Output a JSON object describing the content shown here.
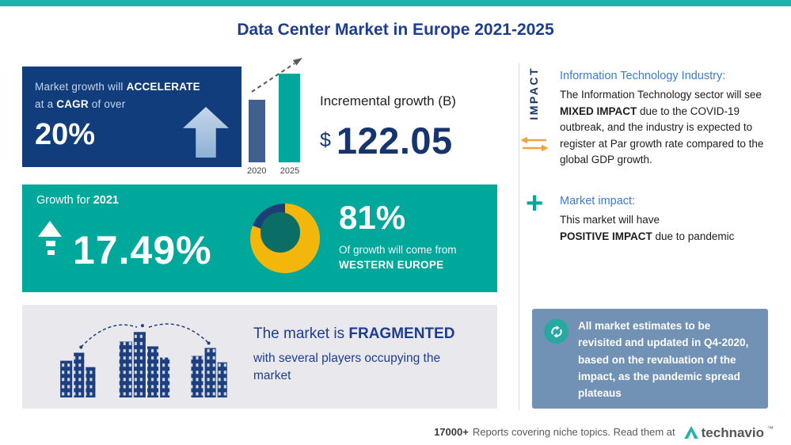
{
  "title": "Data Center Market in Europe 2021-2025",
  "accel_box": {
    "line1_pre": "Market growth will ",
    "line1_bold": "ACCELERATE",
    "line2_pre": "at a ",
    "line2_bold": "CAGR",
    "line2_post": " of over",
    "value": "20%"
  },
  "incremental": {
    "label": "Incremental growth (B)",
    "currency": "$",
    "value": "122.05"
  },
  "growth_box": {
    "label_pre": "Growth for ",
    "label_year": "2021",
    "value": "17.49%",
    "share_value": "81%",
    "share_line1": "Of growth will come from",
    "share_line2": "WESTERN EUROPE"
  },
  "fragmented": {
    "line1_pre": "The market is ",
    "line1_bold": "FRAGMENTED",
    "rest": "with several players occupying the market"
  },
  "impact_col": {
    "vertical_label": "IMPACT",
    "section1_heading": "Information Technology Industry:",
    "section1_pre": "The Information Technology sector will see ",
    "section1_bold": "MIXED IMPACT",
    "section1_post": " due to the COVID-19 outbreak, and the industry is expected to register at Par growth rate compared to the global GDP growth.",
    "section2_heading": "Market impact:",
    "section2_pre": "This market will have",
    "section2_bold": "POSITIVE IMPACT",
    "section2_post": " due to pandemic",
    "estimates_note": "All market estimates to be revisited and updated in Q4-2020, based on the revaluation of the impact, as the pandemic spread plateaus"
  },
  "footer": {
    "count": "17000+",
    "text": "Reports covering niche topics. Read them at",
    "brand": "technavio",
    "tm": "™"
  },
  "icons": {
    "plus": "+"
  },
  "colors": {
    "accent_teal": "#00a79b",
    "top_strip_teal": "#1db3aa",
    "navy_box": "#113d7c",
    "title_blue": "#1e3d8f",
    "heading_blue": "#3b7cd1",
    "steel_blue_box": "#7191b5",
    "donut_yellow": "#f2b70a",
    "donut_navy": "#1b3f77",
    "donut_center": "#0b6e66",
    "orange_arrows": "#f2a13c",
    "gray_box": "#e9e9ed"
  },
  "chart_data": [
    {
      "type": "bar",
      "title": "Incremental growth (B)",
      "categories": [
        "2020",
        "2025"
      ],
      "values": [
        70.5,
        100
      ],
      "units": "relative bar height (2025 = 100, no value axis shown)",
      "annotation": "$ 122.05",
      "colors": [
        "#41608f",
        "#00a79b"
      ],
      "legend": "none"
    },
    {
      "type": "pie",
      "subtype": "donut",
      "title": "81% Of growth will come from WESTERN EUROPE",
      "labels": [
        "WESTERN EUROPE",
        "Other"
      ],
      "values": [
        81,
        19
      ],
      "colors": [
        "#f2b70a",
        "#1b3f77"
      ],
      "center_label": "81%"
    }
  ]
}
